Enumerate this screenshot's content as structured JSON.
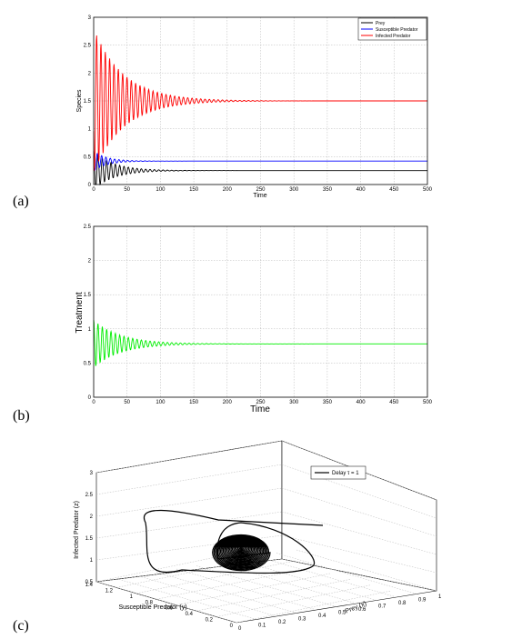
{
  "panels": {
    "a": {
      "letter": "(a)"
    },
    "b": {
      "letter": "(b)"
    },
    "c": {
      "letter": "(c)"
    }
  },
  "chart_data": [
    {
      "type": "line",
      "xlabel": "Time",
      "ylabel": "Species",
      "xlim": [
        0,
        500
      ],
      "ylim": [
        0,
        3
      ],
      "xticks": [
        "0",
        "50",
        "100",
        "150",
        "200",
        "250",
        "300",
        "350",
        "400",
        "450",
        "500"
      ],
      "yticks": [
        "0",
        "0.5",
        "1",
        "1.5",
        "2",
        "2.5",
        "3"
      ],
      "grid": true,
      "legend_position": "top-right",
      "series": [
        {
          "name": "Prey",
          "color": "#000000",
          "equilibrium": 0.25,
          "initial_amplitude": 0.35,
          "period": 6.5,
          "decay": 30
        },
        {
          "name": "Susceptible Predator",
          "color": "#0000ff",
          "equilibrium": 0.42,
          "initial_amplitude": 0.18,
          "period": 6.5,
          "decay": 20
        },
        {
          "name": "Infected Predator",
          "color": "#ff0000",
          "equilibrium": 1.5,
          "initial_amplitude": 1.3,
          "period": 6.5,
          "decay": 45
        }
      ]
    },
    {
      "type": "line",
      "xlabel": "Time",
      "ylabel": "Treatment",
      "xlim": [
        0,
        500
      ],
      "ylim": [
        0,
        2.5
      ],
      "xticks": [
        "0",
        "50",
        "100",
        "150",
        "200",
        "250",
        "300",
        "350",
        "400",
        "450",
        "500"
      ],
      "yticks": [
        "0",
        "0.5",
        "1",
        "1.5",
        "2",
        "2.5"
      ],
      "grid": true,
      "series": [
        {
          "color": "#00ee00",
          "equilibrium": 0.78,
          "initial_amplitude": 0.35,
          "period": 6.5,
          "decay": 40
        }
      ]
    },
    {
      "type": "line3d",
      "xlabel": "Prey (x)",
      "ylabel": "Susceptible Predator (y)",
      "zlabel": "Infected Predator (z)",
      "xticks": [
        "0",
        "0.1",
        "0.2",
        "0.3",
        "0.4",
        "0.5",
        "0.6",
        "0.7",
        "0.8",
        "0.9",
        "1"
      ],
      "yticks": [
        "0",
        "0.2",
        "0.4",
        "0.6",
        "0.8",
        "1",
        "1.2",
        "1.4"
      ],
      "zticks": [
        "0.5",
        "1",
        "1.5",
        "2",
        "2.5",
        "3"
      ],
      "grid": true,
      "legend_position": "top-right",
      "series": [
        {
          "name": "Delay τ = 1",
          "color": "#000000"
        }
      ]
    }
  ]
}
